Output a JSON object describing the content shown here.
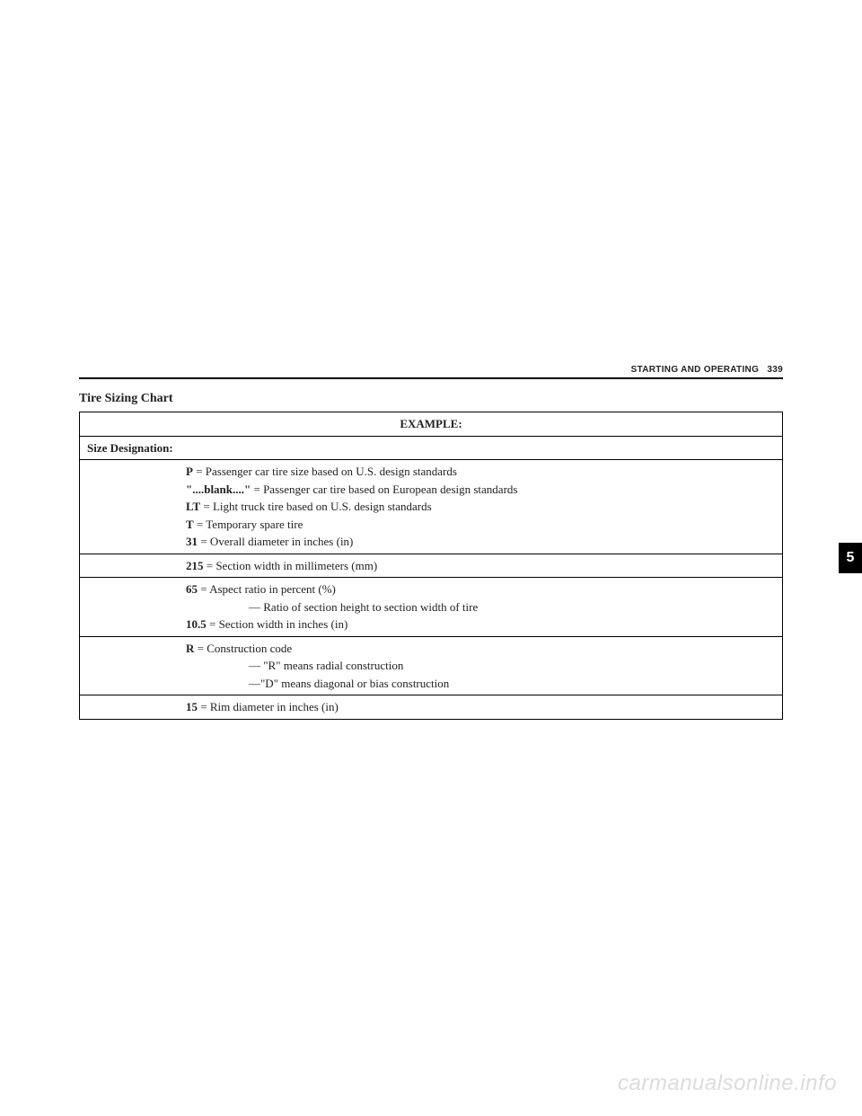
{
  "header": {
    "section": "STARTING AND OPERATING",
    "page": "339"
  },
  "title": "Tire Sizing Chart",
  "table": {
    "example": "EXAMPLE:",
    "sizeDesignation": "Size Designation:",
    "row1": {
      "p_key": "P",
      "p_text": " = Passenger car tire size based on U.S. design standards",
      "blank_key": "\"....blank....\"",
      "blank_text": " = Passenger car tire based on European design standards",
      "lt_key": "LT",
      "lt_text": " = Light truck tire based on U.S. design standards",
      "t_key": "T",
      "t_text": " = Temporary spare tire",
      "d31_key": "31",
      "d31_text": " = Overall diameter in inches (in)"
    },
    "row2": {
      "key": "215",
      "text": " = Section width in millimeters (mm)"
    },
    "row3": {
      "key65": "65",
      "text65": " = Aspect ratio in percent (%)",
      "sub": "— Ratio of section height to section width of tire",
      "key105": "10.5",
      "text105": " = Section width in inches (in)"
    },
    "row4": {
      "keyr": "R",
      "textr": " = Construction code",
      "sub1": "— \"R\" means radial construction",
      "sub2": "—\"D\" means diagonal or bias construction"
    },
    "row5": {
      "key": "15",
      "text": " = Rim diameter in inches (in)"
    }
  },
  "tab": "5",
  "watermark": "carmanualsonline.info"
}
